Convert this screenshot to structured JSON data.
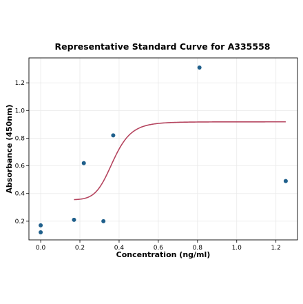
{
  "chart_data": {
    "type": "scatter",
    "title": "Representative Standard Curve for A335558",
    "xlabel": "Concentration (ng/ml)",
    "ylabel": "Absorbance (450nm)",
    "xlim": [
      -0.06,
      1.31
    ],
    "ylim": [
      0.065,
      1.38
    ],
    "x_ticks": [
      0.0,
      0.2,
      0.4,
      0.6,
      0.8,
      1.0,
      1.2
    ],
    "x_tick_labels": [
      "0.0",
      "0.2",
      "0.4",
      "0.6",
      "0.8",
      "1.0",
      "1.2"
    ],
    "y_ticks": [
      0.2,
      0.4,
      0.6,
      0.8,
      1.0,
      1.2
    ],
    "y_tick_labels": [
      "0.2",
      "0.4",
      "0.6",
      "0.8",
      "1.0",
      "1.2"
    ],
    "grid": true,
    "points": [
      {
        "x": 0.0,
        "y": 0.12
      },
      {
        "x": 0.0,
        "y": 0.17
      },
      {
        "x": 0.17,
        "y": 0.21
      },
      {
        "x": 0.22,
        "y": 0.62
      },
      {
        "x": 0.32,
        "y": 0.2
      },
      {
        "x": 0.37,
        "y": 0.82
      },
      {
        "x": 0.81,
        "y": 1.31
      },
      {
        "x": 1.25,
        "y": 0.49
      }
    ],
    "fit_curve": {
      "type": "logistic",
      "x_range": [
        0.17,
        1.25
      ],
      "bottom": 0.355,
      "top": 0.918,
      "ec50": 0.37,
      "hill": 8.0
    },
    "colors": {
      "points": "#1f5f8b",
      "curve": "#b5455f"
    }
  }
}
